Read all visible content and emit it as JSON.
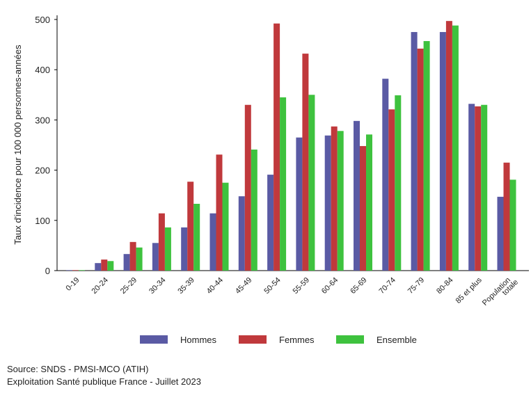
{
  "chart_data": {
    "type": "bar",
    "ylabel": "Taux d'incidence pour 100 000 personnes-années",
    "xlabel": "",
    "ylim": [
      0,
      500
    ],
    "yticks": [
      0,
      100,
      200,
      300,
      400,
      500
    ],
    "grid": false,
    "legend_position": "bottom",
    "categories": [
      "0-19",
      "20-24",
      "25-29",
      "30-34",
      "35-39",
      "40-44",
      "45-49",
      "50-54",
      "55-59",
      "60-64",
      "65-69",
      "70-74",
      "75-79",
      "80-84",
      "85 et plus",
      "Population totale"
    ],
    "series": [
      {
        "name": "Hommes",
        "color": "#5a5aa4",
        "values": [
          1,
          15,
          33,
          55,
          86,
          114,
          148,
          191,
          265,
          269,
          298,
          382,
          475,
          475,
          332,
          147
        ]
      },
      {
        "name": "Femmes",
        "color": "#c0393c",
        "values": [
          1,
          22,
          57,
          114,
          177,
          231,
          330,
          492,
          432,
          287,
          248,
          321,
          442,
          497,
          327,
          215
        ]
      },
      {
        "name": "Ensemble",
        "color": "#3ec23e",
        "values": [
          1,
          19,
          46,
          86,
          133,
          175,
          241,
          345,
          350,
          278,
          271,
          349,
          457,
          488,
          330,
          181
        ]
      }
    ]
  },
  "footer": {
    "source": "Source: SNDS - PMSI-MCO (ATIH)",
    "exploitation": "Exploitation Santé publique France - Juillet 2023"
  }
}
